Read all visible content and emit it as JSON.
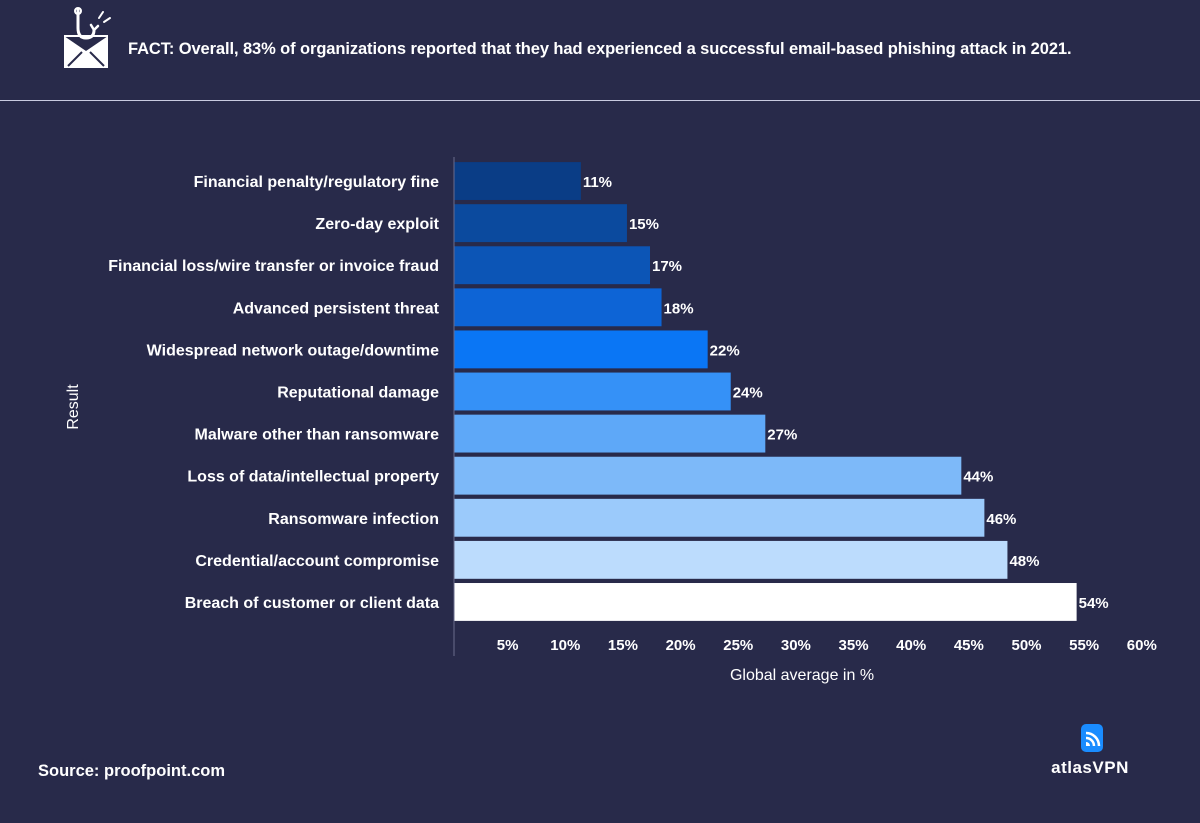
{
  "header": {
    "fact_text": "FACT: Overall, 83% of organizations reported that they had experienced a successful email-based phishing attack in 2021.",
    "icon": "phishing-hook-envelope-icon"
  },
  "footer": {
    "source": "Source: proofpoint.com",
    "logo_text": "atlasVPN",
    "logo_icon": "atlasvpn-signal-icon"
  },
  "colors": {
    "background": "#282a4a",
    "bars": [
      "#0a3d86",
      "#0b4a9e",
      "#0c55b6",
      "#0d64d6",
      "#0a76f5",
      "#3591f7",
      "#5ea8f8",
      "#7db9f9",
      "#9bcafb",
      "#bcdcfd",
      "#ffffff"
    ]
  },
  "chart_data": {
    "type": "bar",
    "orientation": "horizontal",
    "categories": [
      "Financial penalty/regulatory fine",
      "Zero-day exploit",
      "Financial loss/wire transfer or invoice fraud",
      "Advanced persistent threat",
      "Widespread network outage/downtime",
      "Reputational damage",
      "Malware other than ransomware",
      "Loss of data/intellectual property",
      "Ransomware infection",
      "Credential/account compromise",
      "Breach of customer or client data"
    ],
    "values": [
      11,
      15,
      17,
      18,
      22,
      24,
      27,
      44,
      46,
      48,
      54
    ],
    "data_labels": [
      "11%",
      "15%",
      "17%",
      "18%",
      "22%",
      "24%",
      "27%",
      "44%",
      "46%",
      "48%",
      "54%"
    ],
    "xlabel": "Global average in %",
    "ylabel": "Result",
    "xticks": [
      5,
      10,
      15,
      20,
      25,
      30,
      35,
      40,
      45,
      50,
      55,
      60
    ],
    "xtick_labels": [
      "5%",
      "10%",
      "15%",
      "20%",
      "25%",
      "30%",
      "35%",
      "40%",
      "45%",
      "50%",
      "55%",
      "60%"
    ],
    "xlim": [
      0,
      60
    ],
    "grid": false,
    "legend": "none"
  }
}
